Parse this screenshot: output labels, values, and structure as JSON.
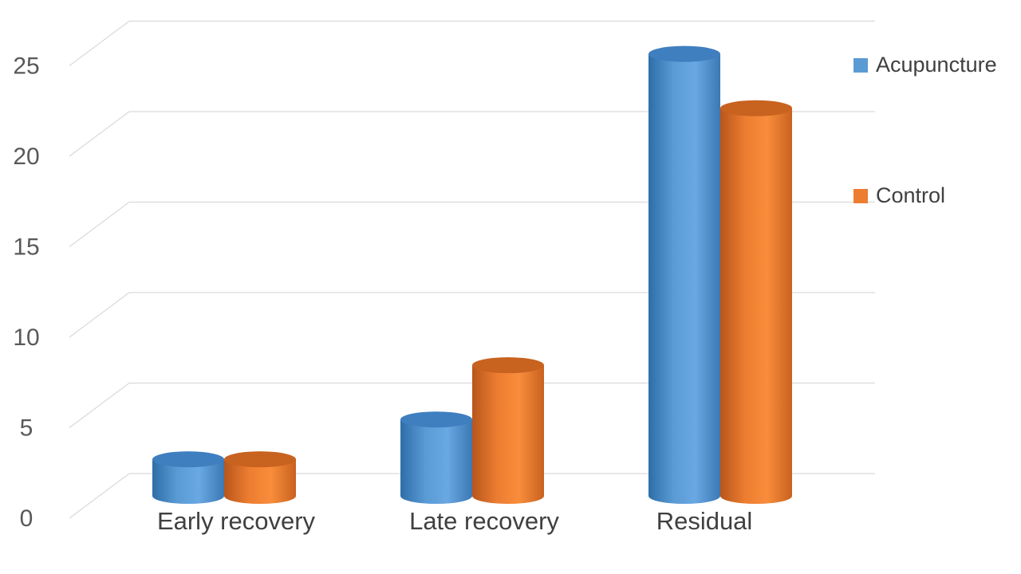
{
  "chart_data": {
    "type": "bar",
    "title": "",
    "xlabel": "",
    "ylabel": "",
    "categories": [
      "Early recovery",
      "Late recovery",
      "Residual"
    ],
    "series": [
      {
        "name": "Acupuncture",
        "values": [
          1.8,
          4.0,
          24.2
        ],
        "color": "#5b9bd5"
      },
      {
        "name": "Control",
        "values": [
          1.8,
          7.0,
          21.2
        ],
        "color": "#ed7d31"
      }
    ],
    "ylim": [
      0,
      25
    ],
    "yticks": [
      0,
      5,
      10,
      15,
      20,
      25
    ],
    "grid": true,
    "legend_position": "right",
    "bar_style": "3d-cylinder"
  }
}
